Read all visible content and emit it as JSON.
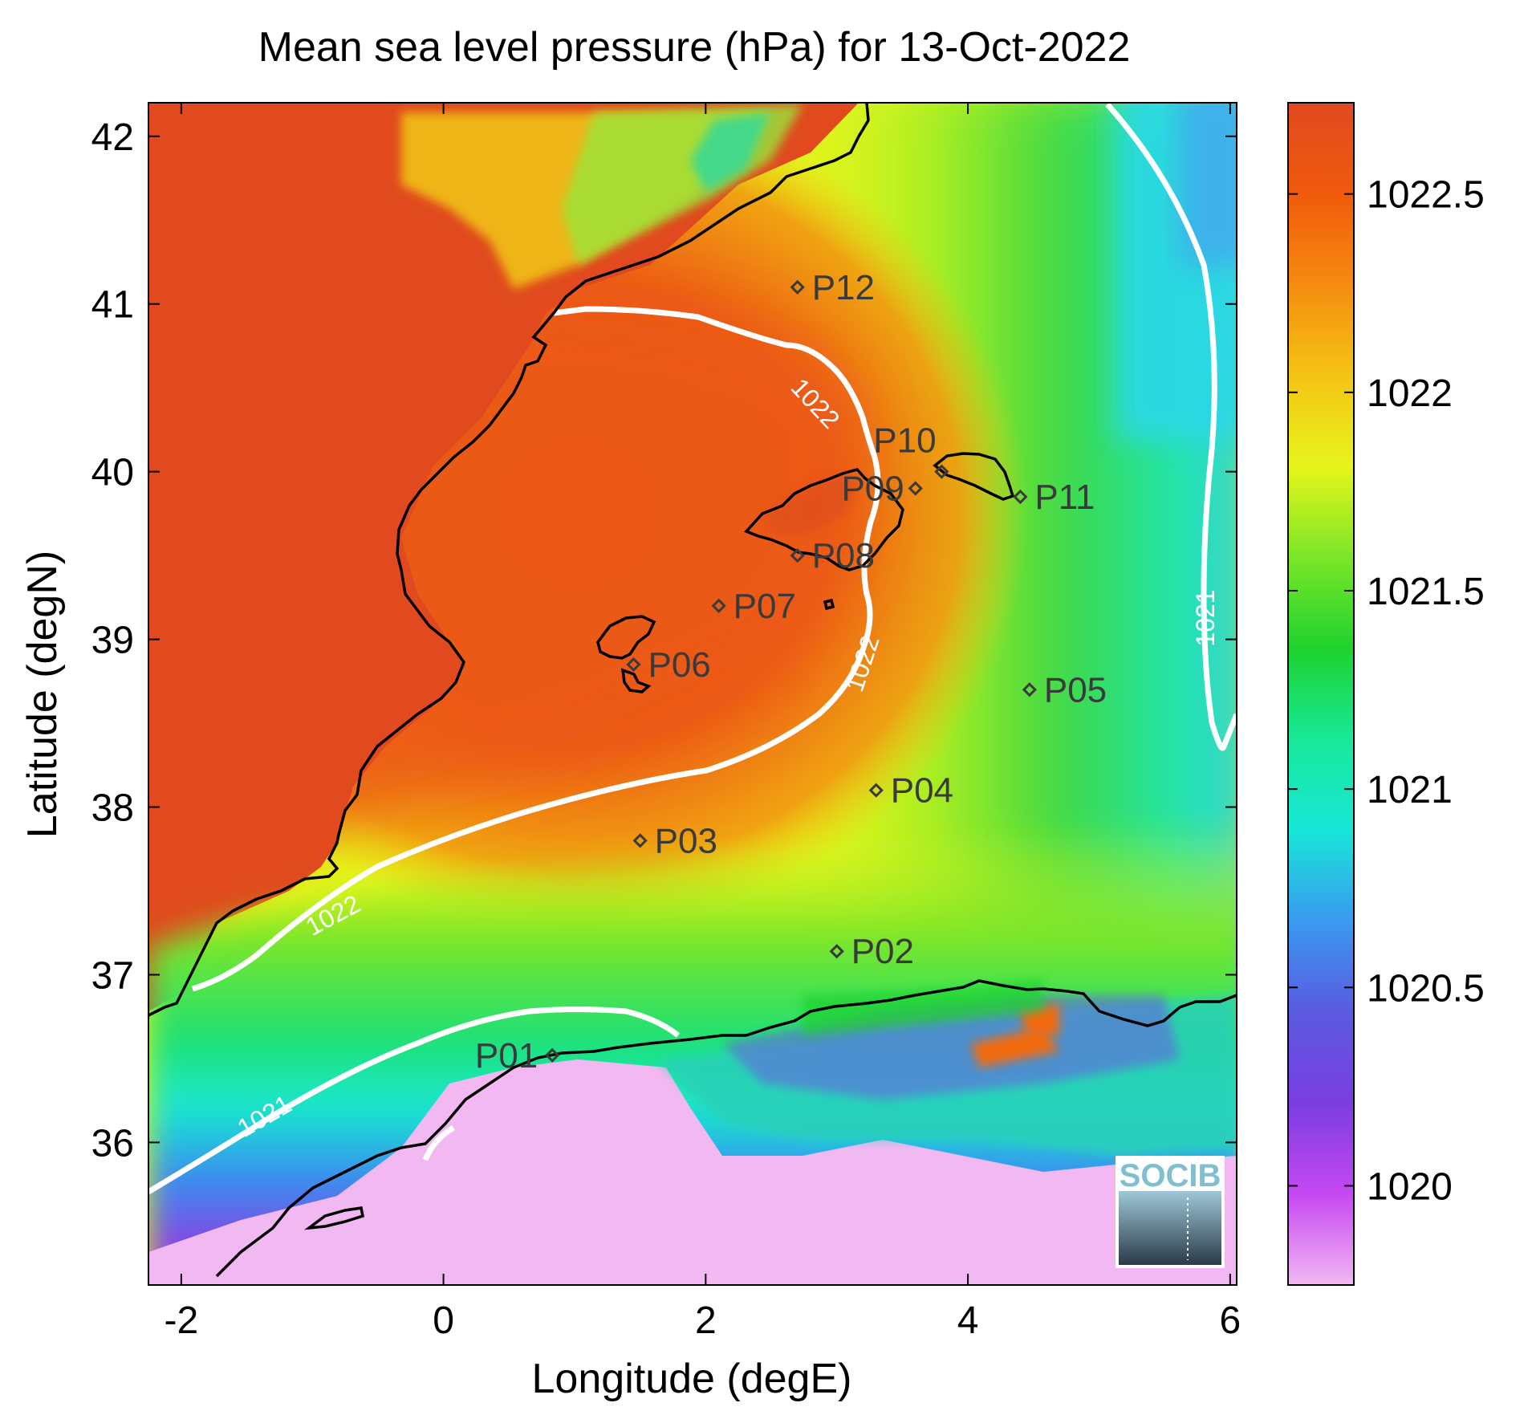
{
  "title": "Mean sea level pressure (hPa) for 13-Oct-2022",
  "xlabel": "Longitude (degE)",
  "ylabel": "Latitude (degN)",
  "x_ticks": [
    "-2",
    "0",
    "2",
    "4",
    "6"
  ],
  "y_ticks": [
    "36",
    "37",
    "38",
    "39",
    "40",
    "41",
    "42"
  ],
  "colorbar": {
    "ticks": [
      "1020",
      "1020.5",
      "1021",
      "1021.5",
      "1022",
      "1022.5"
    ],
    "range": [
      1019.75,
      1022.73
    ],
    "colors": [
      "#f2b8f2",
      "#c648f2",
      "#7a3ee0",
      "#5a5ae0",
      "#3a9af0",
      "#18e6d8",
      "#18e898",
      "#1ed22e",
      "#7ae628",
      "#e6f51c",
      "#f5c414",
      "#f58c10",
      "#f05a0c",
      "#e04a20"
    ]
  },
  "contour_labels": [
    "1022",
    "1022",
    "1022",
    "1021",
    "1021"
  ],
  "stations": [
    {
      "label": "P01",
      "lon": 0.83,
      "lat": 36.52
    },
    {
      "label": "P02",
      "lon": 3.0,
      "lat": 37.14
    },
    {
      "label": "P03",
      "lon": 1.5,
      "lat": 37.8
    },
    {
      "label": "P04",
      "lon": 3.3,
      "lat": 38.1
    },
    {
      "label": "P05",
      "lon": 4.47,
      "lat": 38.7
    },
    {
      "label": "P06",
      "lon": 1.45,
      "lat": 38.85
    },
    {
      "label": "P07",
      "lon": 2.1,
      "lat": 39.2
    },
    {
      "label": "P08",
      "lon": 2.7,
      "lat": 39.5
    },
    {
      "label": "P09",
      "lon": 3.6,
      "lat": 39.9
    },
    {
      "label": "P10",
      "lon": 3.8,
      "lat": 40.0
    },
    {
      "label": "P11",
      "lon": 4.4,
      "lat": 39.85
    },
    {
      "label": "P12",
      "lon": 2.7,
      "lat": 41.1
    }
  ],
  "logo": "SOCIB",
  "chart_data": {
    "type": "heatmap",
    "title": "Mean sea level pressure (hPa) for 13-Oct-2022",
    "xlabel": "Longitude (degE)",
    "ylabel": "Latitude (degN)",
    "xlim": [
      -2.25,
      6.05
    ],
    "ylim": [
      35.15,
      42.2
    ],
    "color_range": [
      1019.75,
      1022.73
    ],
    "contour_levels": [
      1021,
      1022
    ]
  }
}
